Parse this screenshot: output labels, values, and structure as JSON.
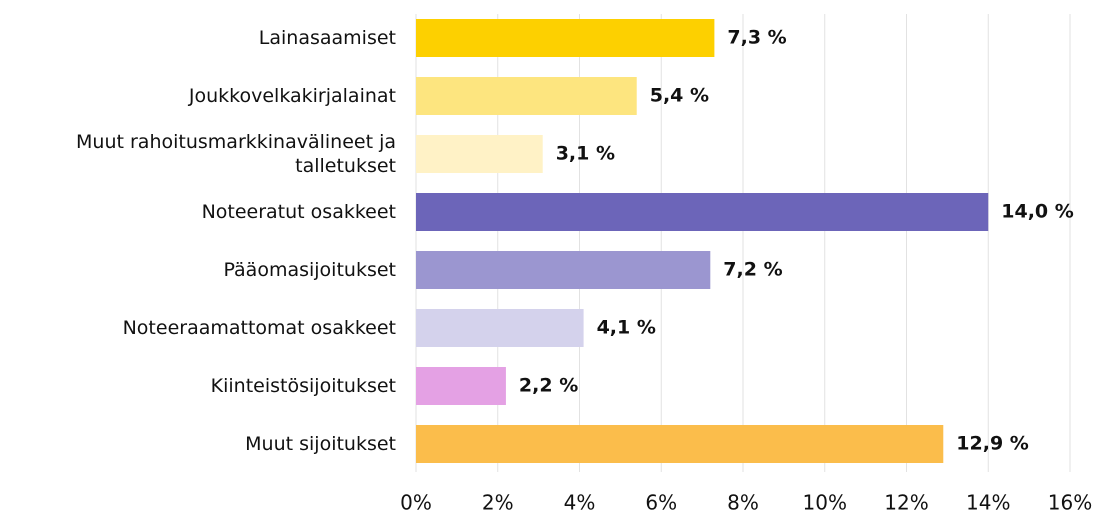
{
  "chart_data": {
    "type": "bar",
    "orientation": "horizontal",
    "categories": [
      "Lainasaamiset",
      "Joukkovelkakirjalainat",
      "Muut rahoitusmarkkinavälineet ja talletukset",
      "Noteeratut osakkeet",
      "Pääomasijoitukset",
      "Noteeraamattomat osakkeet",
      "Kiinteistösijoitukset",
      "Muut sijoitukset"
    ],
    "values": [
      7.3,
      5.4,
      3.1,
      14.0,
      7.2,
      4.1,
      2.2,
      12.9
    ],
    "value_labels": [
      "7,3 %",
      "5,4 %",
      "3,1 %",
      "14,0 %",
      "7,2 %",
      "4,1 %",
      "2,2 %",
      "12,9 %"
    ],
    "colors": [
      "#fdd000",
      "#fde57f",
      "#fff2c6",
      "#6c65b9",
      "#9b96d0",
      "#d4d2ec",
      "#e4a1e4",
      "#fbbd4b"
    ],
    "xlim": [
      0,
      16
    ],
    "xticks": [
      {
        "value": 0,
        "label": "0%"
      },
      {
        "value": 2,
        "label": "2%"
      },
      {
        "value": 4,
        "label": "4%"
      },
      {
        "value": 6,
        "label": "6%"
      },
      {
        "value": 8,
        "label": "8%"
      },
      {
        "value": 10,
        "label": "10%"
      },
      {
        "value": 12,
        "label": "12%"
      },
      {
        "value": 14,
        "label": "14%"
      },
      {
        "value": 16,
        "label": "16%"
      }
    ],
    "grid": true
  }
}
